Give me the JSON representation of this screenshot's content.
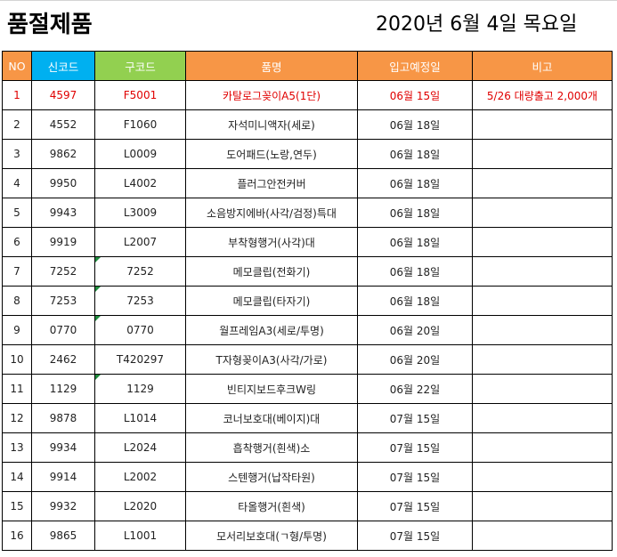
{
  "title": "품절제품",
  "date": "2020년 6월 4일 목요일",
  "headers": [
    "NO",
    "신코드",
    "구코드",
    "품명",
    "입고예정일",
    "비고"
  ],
  "header_colors": {
    "orange": "#f79646",
    "blue": "#00b0f0",
    "green": "#92d050"
  },
  "rows": [
    [
      "1",
      "4597",
      "F5001",
      "카탈로그꽂이A5(1단)",
      "06월 15일",
      "5/26 대량출고 2,000개"
    ],
    [
      "2",
      "4552",
      "F1060",
      "자석미니액자(세로)",
      "06월 18일",
      ""
    ],
    [
      "3",
      "9862",
      "L0009",
      "도어패드(노랑,연두)",
      "06월 18일",
      ""
    ],
    [
      "4",
      "9950",
      "L4002",
      "플러그안전커버",
      "06월 18일",
      ""
    ],
    [
      "5",
      "9943",
      "L3009",
      "소음방지에바(사각/검정)특대",
      "06월 18일",
      ""
    ],
    [
      "6",
      "9919",
      "L2007",
      "부착형행거(사각)대",
      "06월 18일",
      ""
    ],
    [
      "7",
      "7252",
      "7252",
      "메모클립(전화기)",
      "06월 18일",
      ""
    ],
    [
      "8",
      "7253",
      "7253",
      "메모클립(타자기)",
      "06월 18일",
      ""
    ],
    [
      "9",
      "0770",
      "0770",
      "월프레임A3(세로/투명)",
      "06월 20일",
      ""
    ],
    [
      "10",
      "2462",
      "T420297",
      "T자형꽂이A3(사각/가로)",
      "06월 20일",
      ""
    ],
    [
      "11",
      "1129",
      "1129",
      "빈티지보드후크W링",
      "06월 22일",
      ""
    ],
    [
      "12",
      "9878",
      "L1014",
      "코너보호대(베이지)대",
      "07월 15일",
      ""
    ],
    [
      "13",
      "9934",
      "L2024",
      "흡착행거(흰색)소",
      "07월 15일",
      ""
    ],
    [
      "14",
      "9914",
      "L2002",
      "스텐행거(납작타원)",
      "07월 15일",
      ""
    ],
    [
      "15",
      "9932",
      "L2020",
      "타올행거(흰색)",
      "07월 15일",
      ""
    ],
    [
      "16",
      "9865",
      "L1001",
      "모서리보호대(ㄱ형/투명)",
      "07월 15일",
      ""
    ]
  ]
}
